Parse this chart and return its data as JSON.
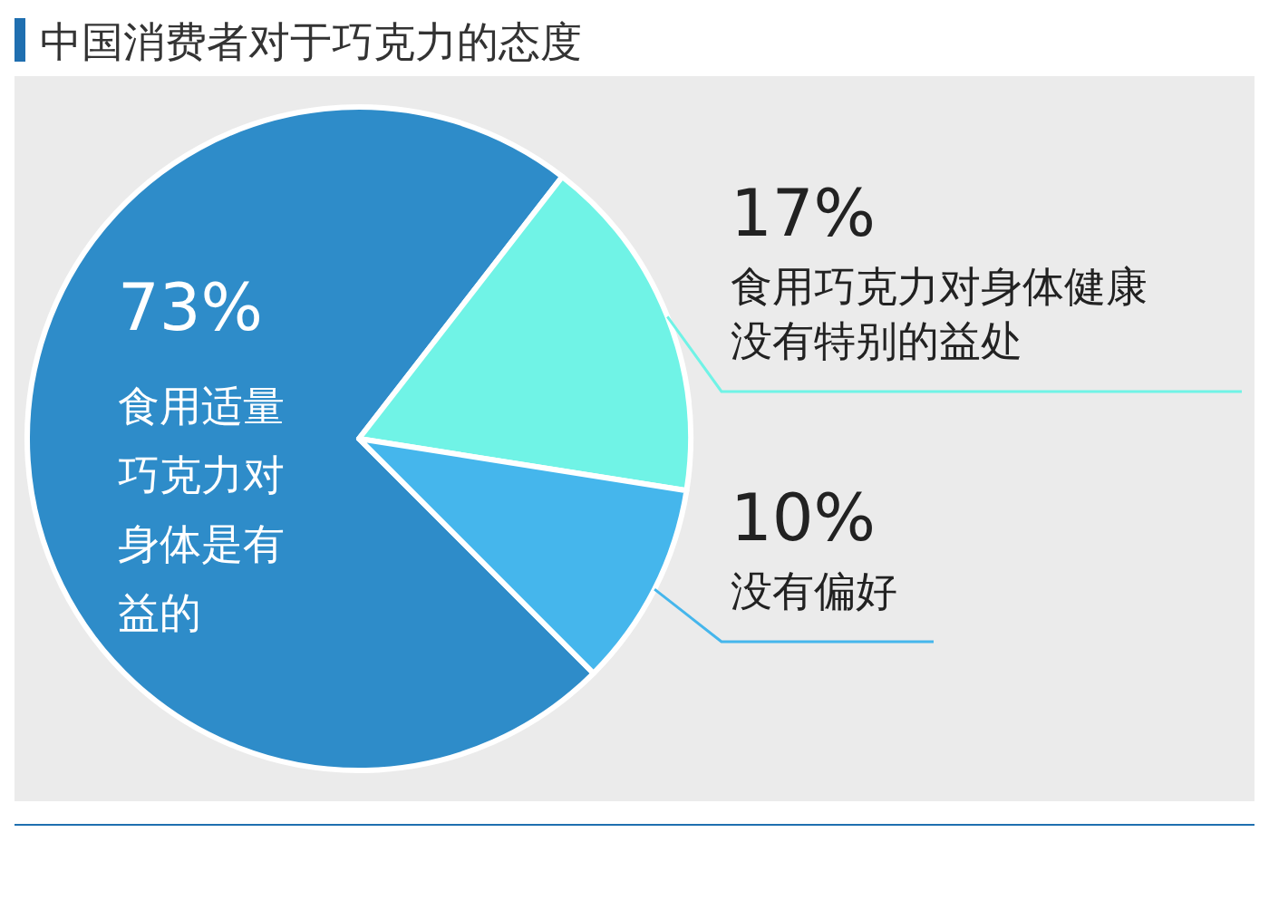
{
  "chart_data": {
    "type": "pie",
    "title": "中国消费者对于巧克力的态度",
    "categories": [
      "食用适量巧克力对身体是有益的",
      "食用巧克力对身体健康没有特别的益处",
      "没有偏好"
    ],
    "values": [
      73,
      17,
      10
    ],
    "colors": [
      "#2e8cc9",
      "#70f3e6",
      "#45b6ec"
    ],
    "value_labels": [
      "73%",
      "17%",
      "10%"
    ]
  }
}
